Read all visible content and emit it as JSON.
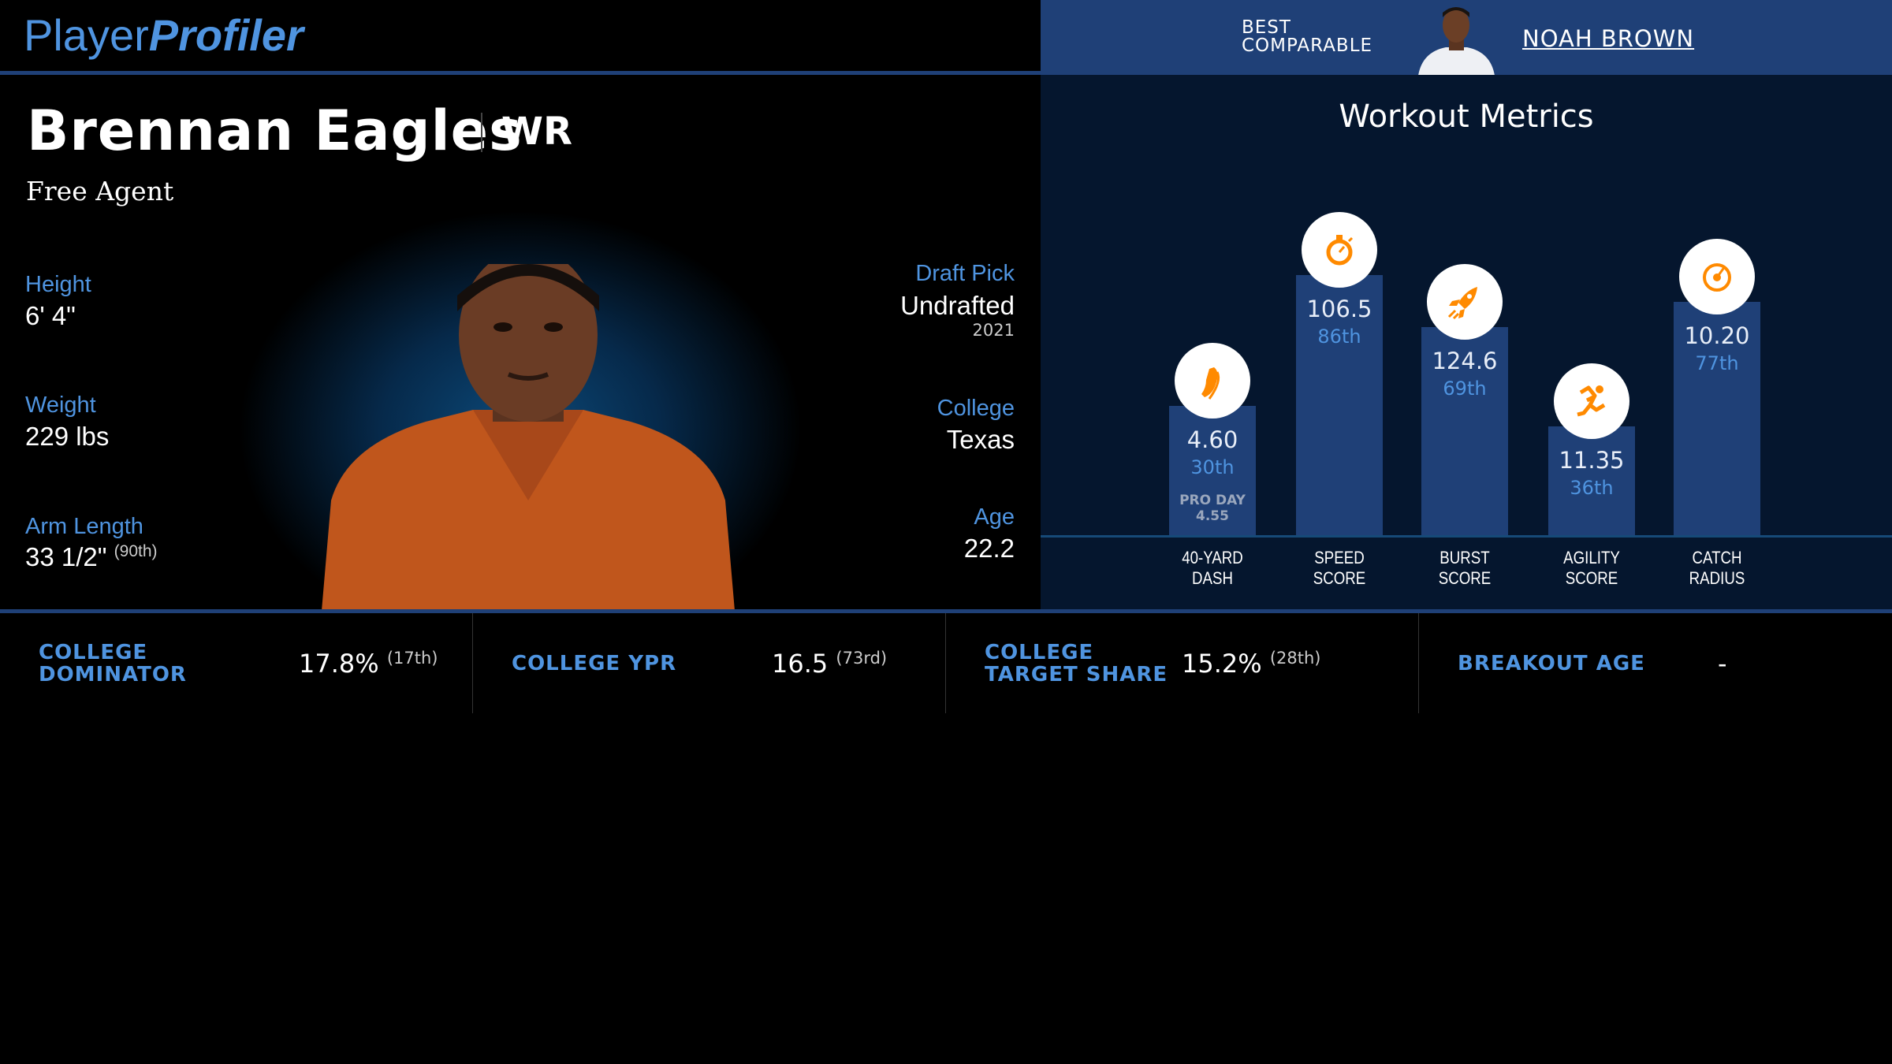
{
  "logo": {
    "part1": "Player",
    "part2": "Profiler"
  },
  "comparable": {
    "label": "BEST COMPARABLE",
    "name": "NOAH BROWN"
  },
  "player": {
    "name": "Brennan Eagles",
    "position": "WR",
    "team": "Free Agent"
  },
  "bio": {
    "height": {
      "label": "Height",
      "value": "6' 4\""
    },
    "weight": {
      "label": "Weight",
      "value": "229 lbs"
    },
    "arm": {
      "label": "Arm Length",
      "value": "33 1/2\"",
      "rank": "(90th)"
    },
    "draft": {
      "label": "Draft Pick",
      "value": "Undrafted",
      "year": "2021"
    },
    "college": {
      "label": "College",
      "value": "Texas"
    },
    "age": {
      "label": "Age",
      "value": "22.2"
    }
  },
  "workout": {
    "title": "Workout Metrics",
    "metrics": [
      {
        "label1": "40-YARD",
        "label2": "DASH",
        "value": "4.60",
        "percentile": "30th",
        "percentile_num": 30,
        "icon": "shoe-icon",
        "extra_label": "PRO DAY",
        "extra_value": "4.55"
      },
      {
        "label1": "SPEED",
        "label2": "SCORE",
        "value": "106.5",
        "percentile": "86th",
        "percentile_num": 86,
        "icon": "stopwatch-icon"
      },
      {
        "label1": "BURST",
        "label2": "SCORE",
        "value": "124.6",
        "percentile": "69th",
        "percentile_num": 69,
        "icon": "rocket-icon"
      },
      {
        "label1": "AGILITY",
        "label2": "SCORE",
        "value": "11.35",
        "percentile": "36th",
        "percentile_num": 36,
        "icon": "runner-icon"
      },
      {
        "label1": "CATCH",
        "label2": "RADIUS",
        "value": "10.20",
        "percentile": "77th",
        "percentile_num": 77,
        "icon": "gauge-icon"
      }
    ]
  },
  "stats": [
    {
      "label": "COLLEGE DOMINATOR",
      "value": "17.8%",
      "rank": "(17th)"
    },
    {
      "label": "COLLEGE YPR",
      "value": "16.5",
      "rank": "(73rd)"
    },
    {
      "label": "COLLEGE TARGET SHARE",
      "value": "15.2%",
      "rank": "(28th)"
    },
    {
      "label": "BREAKOUT AGE",
      "value": "-",
      "rank": ""
    }
  ],
  "colors": {
    "accent": "#4f94e0",
    "bar": "#1f4077",
    "panel": "#05162e",
    "icon": "#ff8a00"
  }
}
